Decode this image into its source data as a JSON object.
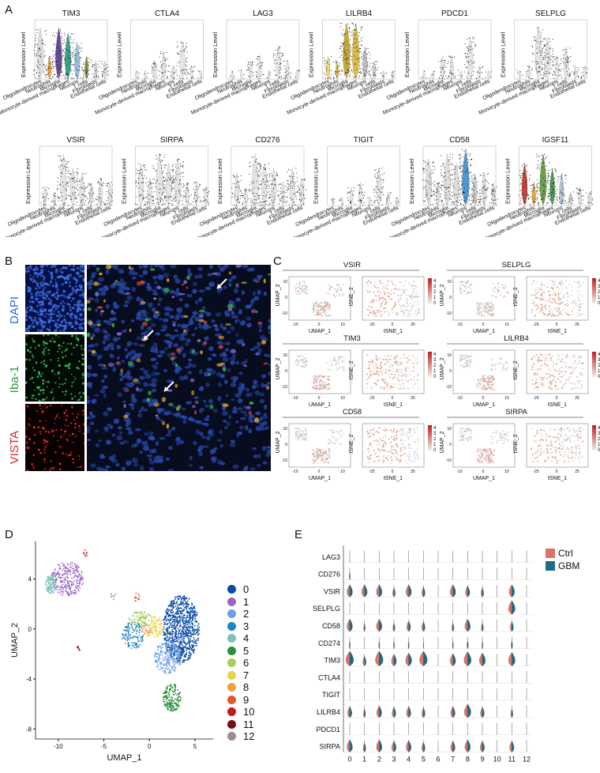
{
  "panels": {
    "A": "A",
    "B": "B",
    "C": "C",
    "D": "D",
    "E": "E"
  },
  "panelA": {
    "ylabel": "Expression Level",
    "celltypes": [
      "Oligodendrocytes",
      "Neutrophils",
      "Microglia",
      "Monocyte-derived macrophages",
      "Neurons",
      "T cells",
      "Fibroblasts",
      "Endothelial cells"
    ],
    "genes_row1": [
      "TIM3",
      "CTLA4",
      "LAG3",
      "LILRB4",
      "PDCD1",
      "SELPLG"
    ],
    "genes_row2": [
      "VSIR",
      "SIRPA",
      "CD276",
      "TIGIT",
      "CD58",
      "IGSF11"
    ]
  },
  "panelB": {
    "channels": [
      {
        "label": "DAPI",
        "color": "#2f6fd0"
      },
      {
        "label": "Iba-1",
        "color": "#2e9a3e"
      },
      {
        "label": "VISTA",
        "color": "#d12a2a"
      }
    ]
  },
  "panelC": {
    "genes": [
      "VSIR",
      "SELPLG",
      "TIM3",
      "LILRB4",
      "CD58",
      "SIRPA"
    ],
    "umap_x": "UMAP_1",
    "umap_y": "UMAP_2",
    "tsne_x": "tSNE_1",
    "tsne_y": "tSNE_2",
    "scale": [
      "4",
      "3",
      "2",
      "1",
      "0"
    ],
    "umap_xticks": [
      "-10",
      "0",
      "10"
    ],
    "tsne_xticks": [
      "-25",
      "0",
      "25"
    ],
    "yticks": [
      "10",
      "0",
      "-10"
    ]
  },
  "panelD": {
    "xlabel": "UMAP_1",
    "ylabel": "UMAP_2",
    "xticks": [
      "-10",
      "-5",
      "0",
      "5"
    ],
    "yticks": [
      "4",
      "0",
      "-4",
      "-8"
    ],
    "clusters": [
      "0",
      "1",
      "2",
      "3",
      "4",
      "5",
      "6",
      "7",
      "8",
      "9",
      "10",
      "11",
      "12"
    ],
    "colors": [
      "#0a4aa8",
      "#9a63c7",
      "#6e9ee4",
      "#1f84c4",
      "#7fc1b9",
      "#2a8e3c",
      "#a6cf5b",
      "#e7d349",
      "#f3a13e",
      "#e05a2a",
      "#c31a1a",
      "#7a0e12",
      "#9e8c8a"
    ]
  },
  "panelE": {
    "genes": [
      "LAG3",
      "CD276",
      "VSIR",
      "SELPLG",
      "CD58",
      "CD274",
      "TIM3",
      "CTLA4",
      "TIGIT",
      "LILRB4",
      "PDCD1",
      "SIRPA"
    ],
    "clusters": [
      "0",
      "1",
      "2",
      "3",
      "4",
      "5",
      "6",
      "7",
      "8",
      "9",
      "10",
      "11",
      "12"
    ],
    "legend": [
      {
        "label": "Ctrl",
        "color": "#df7366"
      },
      {
        "label": "GBM",
        "color": "#1f6a85"
      }
    ]
  }
}
